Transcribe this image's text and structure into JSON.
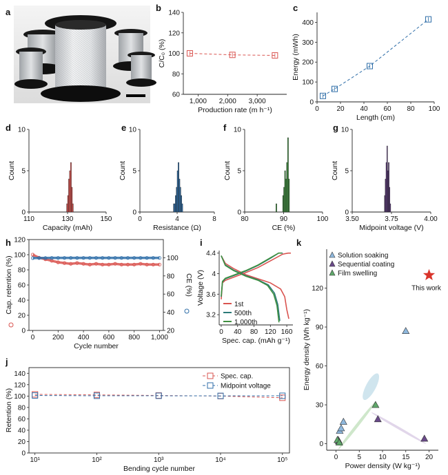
{
  "panels": {
    "a": {
      "letter": "a"
    },
    "b": {
      "letter": "b"
    },
    "c": {
      "letter": "c"
    },
    "d": {
      "letter": "d"
    },
    "e": {
      "letter": "e"
    },
    "f": {
      "letter": "f"
    },
    "g": {
      "letter": "g"
    },
    "h": {
      "letter": "h"
    },
    "i": {
      "letter": "i"
    },
    "j": {
      "letter": "j"
    },
    "k": {
      "letter": "k"
    }
  },
  "colors": {
    "red": "#d9534f",
    "blue": "#2f6ea8",
    "teal": "#2b7a78",
    "green": "#3f8f3f",
    "purple": "#5b3a7a",
    "gray": "#555555",
    "star": "#d9342b",
    "hist_d": "#d9534f",
    "hist_e": "#2f6ea8",
    "hist_f": "#3f8f3f",
    "hist_g": "#5b3a7a",
    "ell_blue": "#a9cfe0",
    "ell_green": "#a7d3a0",
    "ell_purple": "#c9b5d8"
  },
  "chart_data": [
    {
      "id": "b",
      "type": "scatter",
      "xlabel": "Production rate (m h⁻¹)",
      "ylabel": "C/C₀ (%)",
      "xlim": [
        500,
        4000
      ],
      "ylim": [
        60,
        140
      ],
      "xticks": [
        1000,
        2000,
        3000
      ],
      "xtick_labels": [
        "1,000",
        "2,000",
        "3,000"
      ],
      "yticks": [
        60,
        80,
        100,
        120,
        140
      ],
      "series": [
        {
          "x": [
            720,
            2160,
            3600
          ],
          "y": [
            100,
            98.5,
            98
          ]
        }
      ]
    },
    {
      "id": "c",
      "type": "line",
      "xlabel": "Length (cm)",
      "ylabel": "Energy (mWh)",
      "xlim": [
        0,
        100
      ],
      "ylim": [
        0,
        450
      ],
      "xticks": [
        0,
        20,
        40,
        60,
        80,
        100
      ],
      "yticks": [
        0,
        100,
        200,
        300,
        400
      ],
      "series": [
        {
          "x": [
            5,
            15,
            45,
            95
          ],
          "y": [
            30,
            65,
            180,
            415
          ]
        }
      ]
    },
    {
      "id": "d",
      "type": "bar",
      "xlabel": "Capacity (mAh)",
      "ylabel": "Count",
      "xlim": [
        110,
        150
      ],
      "ylim": [
        0,
        10
      ],
      "xticks": [
        110,
        130,
        150
      ],
      "yticks": [
        0,
        5,
        10
      ],
      "bin_width": 0.5,
      "bins": [
        129.5,
        130.0,
        130.5,
        131.0,
        131.5,
        132.0,
        132.5
      ],
      "values": [
        1,
        2,
        4,
        5,
        6,
        3,
        1
      ]
    },
    {
      "id": "e",
      "type": "bar",
      "xlabel": "Resistance (Ω)",
      "ylabel": "Count",
      "xlim": [
        0,
        8
      ],
      "ylim": [
        0,
        10
      ],
      "xticks": [
        0,
        4,
        8
      ],
      "yticks": [
        0,
        5,
        10
      ],
      "bin_width": 0.1,
      "bins": [
        3.6,
        3.7,
        3.8,
        3.9,
        4.0,
        4.1,
        4.2,
        4.3,
        4.4,
        4.5
      ],
      "values": [
        1,
        1,
        2,
        3,
        5,
        6,
        4,
        3,
        2,
        1
      ]
    },
    {
      "id": "f",
      "type": "bar",
      "xlabel": "CE (%)",
      "ylabel": "Count",
      "xlim": [
        80,
        100
      ],
      "ylim": [
        0,
        10
      ],
      "xticks": [
        80,
        90,
        100
      ],
      "yticks": [
        0,
        5,
        10
      ],
      "bin_width": 0.25,
      "bins": [
        88.0,
        89.75,
        90.0,
        90.25,
        90.5,
        90.75,
        91.0,
        91.25
      ],
      "values": [
        1,
        2,
        3,
        5,
        4,
        6,
        9,
        4
      ]
    },
    {
      "id": "g",
      "type": "bar",
      "xlabel": "Midpoint voltage (V)",
      "ylabel": "Count",
      "xlim": [
        3.5,
        4.0
      ],
      "ylim": [
        0,
        10
      ],
      "xticks": [
        3.5,
        3.75,
        4.0
      ],
      "xtick_labels": [
        "3.50",
        "3.75",
        "4.00"
      ],
      "yticks": [
        0,
        5,
        10
      ],
      "bin_width": 0.005,
      "bins": [
        3.705,
        3.71,
        3.715,
        3.72,
        3.725,
        3.73,
        3.735,
        3.74
      ],
      "values": [
        2,
        4,
        6,
        8,
        5,
        6,
        3,
        1
      ]
    },
    {
      "id": "h",
      "type": "scatter",
      "xlabel": "Cycle number",
      "ylabel": "Cap. retention (%)",
      "ylabel2": "CE (%)",
      "xlim": [
        -30,
        1030
      ],
      "ylim": [
        0,
        120
      ],
      "ylim2": [
        20,
        120
      ],
      "xticks": [
        0,
        200,
        400,
        600,
        800,
        1000
      ],
      "xtick_labels": [
        "0",
        "200",
        "400",
        "600",
        "800",
        "1,000"
      ],
      "yticks": [
        0,
        20,
        40,
        60,
        80,
        100,
        120
      ],
      "yticks2": [
        20,
        40,
        60,
        80,
        100
      ],
      "series": [
        {
          "axis": "left",
          "x": [
            0,
            50,
            100,
            150,
            200,
            250,
            300,
            350,
            400,
            450,
            500,
            550,
            600,
            650,
            700,
            750,
            800,
            850,
            900,
            950,
            1000
          ],
          "y": [
            100,
            96,
            94,
            92,
            90,
            89,
            88,
            89,
            88,
            87,
            88,
            87,
            87,
            88,
            87,
            87,
            87,
            88,
            87,
            87,
            87
          ]
        },
        {
          "axis": "right",
          "x": [
            0,
            50,
            100,
            150,
            200,
            250,
            300,
            350,
            400,
            450,
            500,
            550,
            600,
            650,
            700,
            750,
            800,
            850,
            900,
            950,
            1000
          ],
          "y": [
            99.6,
            99.7,
            99.7,
            99.8,
            99.8,
            99.8,
            99.8,
            99.8,
            99.8,
            99.8,
            99.8,
            99.8,
            99.8,
            99.8,
            99.8,
            99.8,
            99.8,
            99.8,
            99.8,
            99.8,
            99.8
          ]
        }
      ]
    },
    {
      "id": "i",
      "type": "line",
      "xlabel": "Spec. cap. (mAh g⁻¹)",
      "ylabel": "Voltage (V)",
      "xlim": [
        -5,
        175
      ],
      "ylim": [
        3.0,
        4.45
      ],
      "xticks": [
        0,
        40,
        80,
        120,
        160
      ],
      "yticks": [
        3.2,
        3.6,
        4.0,
        4.4
      ],
      "series": [
        {
          "name": "1st",
          "charge_x": [
            0,
            3,
            10,
            30,
            60,
            90,
            120,
            150,
            163,
            170
          ],
          "charge_y": [
            3.5,
            3.82,
            3.87,
            3.93,
            4.02,
            4.12,
            4.25,
            4.38,
            4.4,
            4.4
          ],
          "discharge_x": [
            0,
            10,
            30,
            60,
            90,
            120,
            145,
            155,
            160,
            165
          ],
          "discharge_y": [
            4.35,
            4.2,
            4.1,
            3.98,
            3.9,
            3.82,
            3.7,
            3.55,
            3.3,
            3.12
          ]
        },
        {
          "name": "500th",
          "charge_x": [
            0,
            3,
            10,
            30,
            60,
            90,
            120,
            140,
            150
          ],
          "charge_y": [
            3.55,
            3.84,
            3.9,
            3.96,
            4.05,
            4.16,
            4.3,
            4.4,
            4.4
          ],
          "discharge_x": [
            0,
            10,
            30,
            60,
            90,
            115,
            130,
            138,
            143
          ],
          "discharge_y": [
            4.35,
            4.17,
            4.07,
            3.96,
            3.88,
            3.78,
            3.62,
            3.4,
            3.08
          ]
        },
        {
          "name": "1,000th",
          "charge_x": [
            0,
            3,
            10,
            30,
            60,
            90,
            120,
            140,
            148
          ],
          "charge_y": [
            3.56,
            3.85,
            3.91,
            3.97,
            4.06,
            4.17,
            4.31,
            4.4,
            4.4
          ],
          "discharge_x": [
            0,
            10,
            30,
            60,
            90,
            113,
            128,
            136,
            141
          ],
          "discharge_y": [
            4.35,
            4.16,
            4.06,
            3.95,
            3.87,
            3.77,
            3.6,
            3.38,
            3.05
          ]
        }
      ]
    },
    {
      "id": "j",
      "type": "line",
      "xlabel": "Bending cycle number",
      "ylabel": "Retention (%)",
      "xscale": "log",
      "xlim": [
        8,
        130000
      ],
      "ylim": [
        0,
        150
      ],
      "xticks": [
        10,
        100,
        1000,
        10000,
        100000
      ],
      "xtick_labels": [
        "10¹",
        "10²",
        "10³",
        "10⁴",
        "10⁵"
      ],
      "yticks": [
        0,
        20,
        40,
        60,
        80,
        100,
        120,
        140
      ],
      "series": [
        {
          "name": "Spec. cap.",
          "x": [
            10,
            100,
            1000,
            10000,
            100000
          ],
          "y": [
            103,
            102,
            101,
            100,
            97
          ]
        },
        {
          "name": "Midpoint voltage",
          "x": [
            10,
            100,
            1000,
            10000,
            100000
          ],
          "y": [
            101,
            100.5,
            100.5,
            100.3,
            100.5
          ]
        }
      ]
    },
    {
      "id": "k",
      "type": "scatter",
      "xlabel": "Power density (W kg⁻¹)",
      "ylabel": "Energy density (Wh kg⁻¹)",
      "xlim": [
        -2,
        22
      ],
      "ylim": [
        -5,
        150
      ],
      "xticks": [
        0,
        5,
        10,
        15,
        20
      ],
      "yticks": [
        0,
        30,
        60,
        90,
        120
      ],
      "series": [
        {
          "name": "Solution soaking",
          "x": [
            0.5,
            0.8,
            1.1,
            1.6,
            15
          ],
          "y": [
            3,
            10,
            12,
            17,
            87
          ]
        },
        {
          "name": "Sequential coating",
          "x": [
            0.6,
            9,
            19
          ],
          "y": [
            2,
            19,
            4
          ]
        },
        {
          "name": "Film swelling",
          "x": [
            0.3,
            0.7,
            8.5
          ],
          "y": [
            3,
            1,
            30
          ]
        },
        {
          "name": "This work",
          "x": [
            20
          ],
          "y": [
            130
          ]
        }
      ]
    }
  ]
}
